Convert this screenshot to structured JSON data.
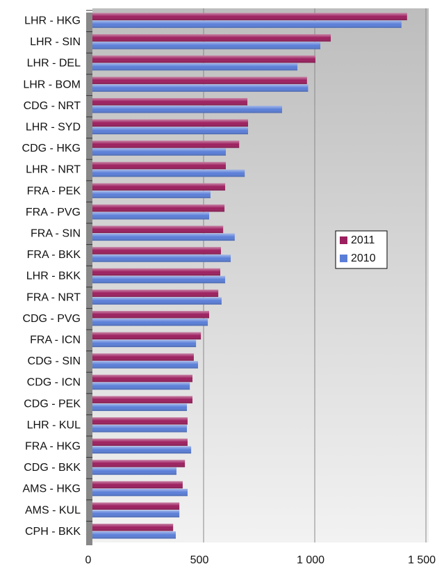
{
  "chart_data": {
    "type": "barh",
    "categories": [
      "LHR - HKG",
      "LHR - SIN",
      "LHR - DEL",
      "LHR - BOM",
      "CDG - NRT",
      "LHR - SYD",
      "CDG - HKG",
      "LHR - NRT",
      "FRA - PEK",
      "FRA - PVG",
      "FRA - SIN",
      "FRA - BKK",
      "LHR - BKK",
      "FRA - NRT",
      "CDG - PVG",
      "FRA - ICN",
      "CDG - SIN",
      "CDG - ICN",
      "CDG - PEK",
      "LHR - KUL",
      "FRA - HKG",
      "CDG - BKK",
      "AMS - HKG",
      "AMS - KUL",
      "CPH - BKK"
    ],
    "series": [
      {
        "name": "2011",
        "color": "#9c1f5f",
        "values": [
          1415,
          1072,
          1003,
          965,
          697,
          700,
          660,
          600,
          597,
          594,
          588,
          578,
          575,
          566,
          525,
          488,
          456,
          450,
          450,
          428,
          428,
          416,
          406,
          391,
          363
        ]
      },
      {
        "name": "2010",
        "color": "#5a7ed8",
        "values": [
          1390,
          1025,
          922,
          970,
          853,
          700,
          600,
          685,
          531,
          525,
          640,
          622,
          597,
          581,
          519,
          466,
          475,
          438,
          425,
          425,
          444,
          378,
          428,
          391,
          375
        ]
      }
    ],
    "xlim": [
      0,
      1500
    ],
    "xticks": [
      0,
      500,
      {
        "value": 1000,
        "label": "1 000"
      },
      {
        "value": 1500,
        "label": "1 500"
      }
    ],
    "grid": true,
    "legend": "right"
  }
}
